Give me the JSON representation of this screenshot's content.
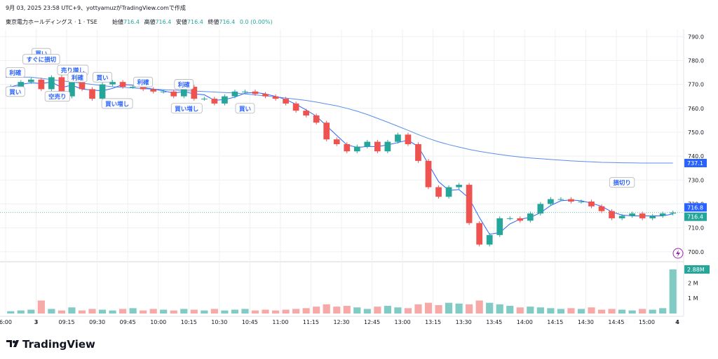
{
  "header": {
    "timestamp": "9月 03, 2025 23:58 UTC+9、yottyamuzがTradingView.comで作成",
    "symbol": "東京電力ホールディングス · 1 · TSE",
    "ohlc": [
      {
        "label": "始値",
        "value": "716.4"
      },
      {
        "label": "高値",
        "value": "716.4"
      },
      {
        "label": "安値",
        "value": "716.4"
      },
      {
        "label": "終値",
        "value": "716.4"
      }
    ],
    "change": "0.0 (0.00%)"
  },
  "logo_text": "TradingView",
  "colors": {
    "up": "#26a69a",
    "down": "#ef5350",
    "vol_up": "#80cbc4",
    "vol_down": "#f7a9a7",
    "ma": "#2962ff",
    "vwap": "#5b8def",
    "grid": "#eef0f3"
  },
  "chart_data": [
    {
      "type": "candlestick",
      "x": [
        "9:00",
        "9:05",
        "9:10",
        "9:15",
        "9:20",
        "9:25",
        "9:30",
        "9:35",
        "9:40",
        "9:45",
        "9:50",
        "9:55",
        "10:00",
        "10:05",
        "10:10",
        "10:15",
        "10:20",
        "10:25",
        "10:30",
        "10:35",
        "10:40",
        "10:45",
        "10:50",
        "10:55",
        "11:00",
        "11:05",
        "11:10",
        "11:15",
        "11:20",
        "11:25",
        "12:30",
        "12:35",
        "12:40",
        "12:45",
        "12:50",
        "12:55",
        "13:00",
        "13:05",
        "13:10",
        "13:15",
        "13:20",
        "13:25",
        "13:30",
        "13:35",
        "13:40",
        "13:45",
        "13:50",
        "13:55",
        "14:00",
        "14:05",
        "14:10",
        "14:15",
        "14:20",
        "14:25",
        "14:30",
        "14:35",
        "14:40",
        "14:45",
        "14:50",
        "14:55",
        "15:00",
        "15:05",
        "15:10",
        "15:15",
        "15:20",
        "15:25"
      ],
      "close": [
        769,
        771,
        772,
        768,
        773,
        765,
        771,
        768,
        764,
        770,
        771,
        769,
        769,
        768,
        767,
        767,
        765,
        769,
        764,
        764,
        762,
        765,
        767,
        767,
        766,
        765,
        764,
        762,
        759,
        757,
        754,
        747,
        745,
        742,
        744,
        746,
        742,
        746,
        749,
        745,
        738,
        727,
        723,
        727,
        728,
        712,
        703,
        707,
        714,
        714,
        713,
        716,
        720,
        722,
        722,
        721,
        721,
        719,
        717,
        714,
        715,
        716,
        714,
        715,
        716,
        716.4
      ],
      "y_range": [
        697,
        793
      ],
      "y_ticks": [
        "790.0",
        "780.0",
        "770.0",
        "760.0",
        "750.0",
        "740.0",
        "730.0",
        "720.0",
        "710.0",
        "700.0"
      ],
      "x_ticks": [
        "6:00",
        "3",
        "09:15",
        "09:30",
        "09:45",
        "10:00",
        "10:15",
        "10:30",
        "10:45",
        "11:00",
        "11:15",
        "12:30",
        "12:45",
        "13:00",
        "13:15",
        "13:30",
        "13:45",
        "14:00",
        "14:15",
        "14:30",
        "14:45",
        "15:00",
        "4"
      ],
      "vwap": [
        773,
        773,
        773,
        772.5,
        772,
        771.5,
        771,
        770.5,
        770,
        769.5,
        769,
        768.8,
        768.5,
        768.2,
        768,
        767.8,
        767.6,
        767.4,
        767.2,
        767,
        766.8,
        766.6,
        766.4,
        766,
        765.6,
        765.2,
        764.8,
        764.3,
        763.8,
        763.3,
        762.6,
        761.8,
        761,
        760,
        758.8,
        757.4,
        755.8,
        754.2,
        752.5,
        750.8,
        749,
        747.4,
        746,
        744.8,
        743.8,
        742.8,
        742,
        741.3,
        740.7,
        740.1,
        739.6,
        739.2,
        738.9,
        738.6,
        738.3,
        738,
        737.8,
        737.6,
        737.4,
        737.3,
        737.2,
        737.15,
        737.1,
        737.1,
        737.1,
        737.1
      ],
      "price_labels": {
        "vwap": "737.1",
        "ma": "716.8",
        "last": "716.4"
      },
      "volume": [
        0.15,
        0.2,
        0.25,
        0.85,
        0.3,
        0.2,
        0.4,
        0.2,
        0.3,
        0.25,
        0.2,
        0.3,
        0.35,
        0.2,
        0.3,
        0.25,
        0.2,
        0.3,
        0.25,
        0.2,
        0.3,
        0.2,
        0.25,
        0.3,
        0.2,
        0.25,
        0.2,
        0.25,
        0.3,
        0.35,
        0.45,
        0.6,
        0.45,
        0.5,
        0.4,
        0.3,
        0.45,
        0.5,
        0.4,
        0.35,
        0.6,
        0.7,
        0.55,
        0.7,
        0.65,
        0.6,
        0.85,
        0.7,
        0.6,
        0.5,
        0.4,
        0.45,
        0.4,
        0.35,
        0.3,
        0.35,
        0.3,
        0.4,
        0.25,
        0.3,
        0.25,
        0.2,
        0.3,
        0.25,
        0.35,
        2.88
      ],
      "volume_ticks": [
        "2 M",
        "1 M"
      ],
      "volume_last": "2.88M",
      "annotations": [
        {
          "text": "利確",
          "x": "9:05",
          "y": 775
        },
        {
          "text": "買い",
          "x": "9:05",
          "y": 767
        },
        {
          "text": "買い",
          "x": "9:15",
          "y": 783
        },
        {
          "text": "すぐに損切",
          "x": "9:15",
          "y": 780.5
        },
        {
          "text": "売り増し",
          "x": "9:25",
          "y": 776
        },
        {
          "text": "利確",
          "x": "9:30",
          "y": 773
        },
        {
          "text": "空売り",
          "x": "9:25",
          "y": 765
        },
        {
          "text": "買い",
          "x": "9:45",
          "y": 773
        },
        {
          "text": "利確",
          "x": "10:05",
          "y": 771
        },
        {
          "text": "買い増し",
          "x": "9:55",
          "y": 762
        },
        {
          "text": "利確",
          "x": "10:25",
          "y": 770
        },
        {
          "text": "買い増し",
          "x": "10:25",
          "y": 760
        },
        {
          "text": "買い",
          "x": "10:55",
          "y": 760
        },
        {
          "text": "損切り",
          "x": "15:00",
          "y": 729
        }
      ]
    }
  ]
}
